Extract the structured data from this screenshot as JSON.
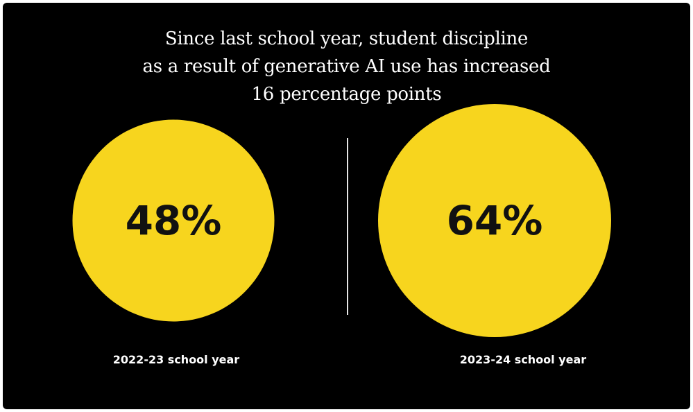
{
  "colors": {
    "background": "#000000",
    "bubble": "#F7D51E",
    "value_text": "#111111",
    "label_text": "#FFFFFF",
    "divider": "#E6E6E6"
  },
  "chart_data": {
    "type": "bubble",
    "title_lines": [
      "Since last school year, student discipline",
      "as a result of generative AI use has increased",
      "16 percentage points"
    ],
    "categories": [
      "2022-23 school year",
      "2023-24 school year"
    ],
    "values": [
      48,
      64
    ],
    "value_labels": [
      "48%",
      "64%"
    ],
    "unit": "%",
    "legend": "none",
    "grid": false
  }
}
